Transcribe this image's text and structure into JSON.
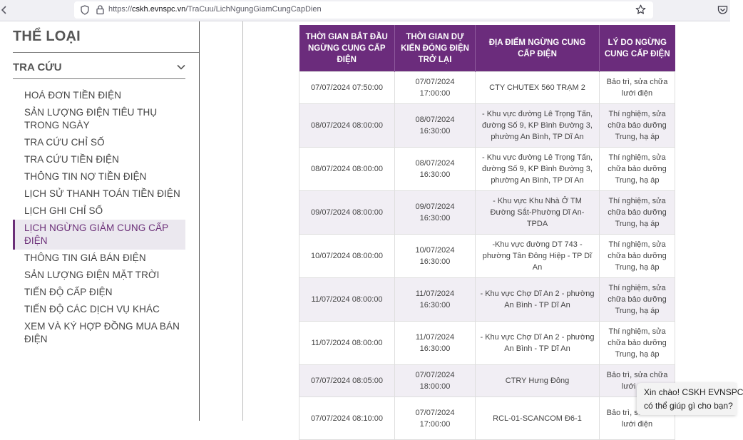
{
  "browser": {
    "url_prefix": "https://",
    "url_host": "cskh.evnspc.vn",
    "url_path": "/TraCuu/LichNgungGiamCungCapDien"
  },
  "sidebar": {
    "category_title": "THỂ LOẠI",
    "section_title": "TRA CỨU",
    "items": [
      {
        "label": "HOÁ ĐƠN TIỀN ĐIỆN"
      },
      {
        "label": "SẢN LƯỢNG ĐIỆN TIÊU THỤ TRONG NGÀY"
      },
      {
        "label": "TRA CỨU CHỈ SỐ"
      },
      {
        "label": "TRA CỨU TIỀN ĐIỆN"
      },
      {
        "label": "THÔNG TIN NỢ TIỀN ĐIỆN"
      },
      {
        "label": "LỊCH SỬ THANH TOÁN TIỀN ĐIỆN"
      },
      {
        "label": "LỊCH GHI CHỈ SỐ"
      },
      {
        "label": "LỊCH NGỪNG GIẢM CUNG CẤP ĐIỆN"
      },
      {
        "label": "THÔNG TIN GIÁ BÁN ĐIỆN"
      },
      {
        "label": "SẢN LƯỢNG ĐIỆN MẶT TRỜI"
      },
      {
        "label": "TIẾN ĐỘ CẤP ĐIỆN"
      },
      {
        "label": "TIẾN ĐỘ CÁC DỊCH VỤ KHÁC"
      },
      {
        "label": "XEM VÀ KÝ HỢP ĐỒNG MUA BÁN ĐIỆN"
      }
    ],
    "active_index": 7
  },
  "table": {
    "headers": [
      "THỜI GIAN BẮT ĐẦU NGỪNG CUNG CẤP ĐIỆN",
      "THỜI GIAN DỰ KIẾN ĐÓNG ĐIỆN TRỞ LẠI",
      "ĐỊA ĐIỂM NGỪNG CUNG CẤP ĐIỆN",
      "LÝ DO NGỪNG CUNG CẤP ĐIỆN"
    ],
    "rows": [
      {
        "start": "07/07/2024 07:50:00",
        "end": "07/07/2024 17:00:00",
        "location": "CTY CHUTEX 560 TRẠM 2",
        "reason": "Bảo trì, sửa chữa lưới điện"
      },
      {
        "start": "08/07/2024 08:00:00",
        "end": "08/07/2024 16:30:00",
        "location": "- Khu vực đường Lê Trọng Tấn, đường Số 9, KP Bình Đường 3, phường An Bình, TP Dĩ An",
        "reason": "Thí nghiệm, sửa chữa bảo dưỡng Trung, hạ áp"
      },
      {
        "start": "08/07/2024 08:00:00",
        "end": "08/07/2024 16:30:00",
        "location": "- Khu vực đường Lê Trọng Tấn, đường Số 9, KP Bình Đường 3, phường An Bình, TP Dĩ An",
        "reason": "Thí nghiệm, sửa chữa bảo dưỡng Trung, hạ áp"
      },
      {
        "start": "09/07/2024 08:00:00",
        "end": "09/07/2024 16:30:00",
        "location": "- Khu vực Khu Nhà Ở TM Đường Sắt-Phường Dĩ An-TPDA",
        "reason": "Thí nghiệm, sửa chữa bảo dưỡng Trung, hạ áp"
      },
      {
        "start": "10/07/2024 08:00:00",
        "end": "10/07/2024 16:30:00",
        "location": "-Khu vực đường DT 743 - phường Tân Đông Hiệp - TP Dĩ An",
        "reason": "Thí nghiệm, sửa chữa bảo dưỡng Trung, hạ áp"
      },
      {
        "start": "11/07/2024 08:00:00",
        "end": "11/07/2024 16:30:00",
        "location": "- Khu vực Chợ Dĩ An 2 - phường An Bình - TP Dĩ An",
        "reason": "Thí nghiệm, sửa chữa bảo dưỡng Trung, hạ áp"
      },
      {
        "start": "11/07/2024 08:00:00",
        "end": "11/07/2024 16:30:00",
        "location": "- Khu vực Chợ Dĩ An 2 - phường An Bình - TP Dĩ An",
        "reason": "Thí nghiệm, sửa chữa bảo dưỡng Trung, hạ áp"
      },
      {
        "start": "07/07/2024 08:05:00",
        "end": "07/07/2024 18:00:00",
        "location": "CTRY Hưng Đông",
        "reason": "Bảo trì, sửa chữa lưới điện"
      },
      {
        "start": "07/07/2024 08:10:00",
        "end": "07/07/2024 17:00:00",
        "location": "RCL-01-SCANCOM Đ6-1",
        "reason": "Bảo trì, sửa chữa lưới điện"
      }
    ]
  },
  "chat": {
    "line1": "Xin chào! CSKH EVNSPC",
    "line2": "có thể giúp gì cho bạn?"
  },
  "colors": {
    "accent": "#6b2c7c",
    "row_alt": "#f1eef4",
    "active_bg": "#ebe8ef"
  }
}
